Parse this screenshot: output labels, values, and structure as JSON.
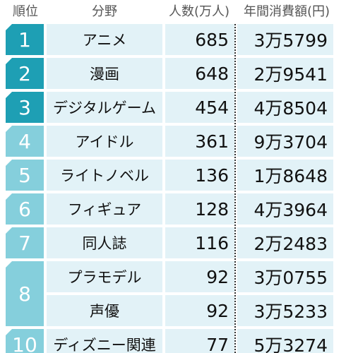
{
  "header": {
    "rank": "順位",
    "field": "分野",
    "count": "人数(万人)",
    "spend": "年間消費額(円)"
  },
  "table": {
    "rows": [
      {
        "rank": 1,
        "field": "アニメ",
        "count": 685,
        "spend": "3万5799"
      },
      {
        "rank": 2,
        "field": "漫画",
        "count": 648,
        "spend": "2万9541"
      },
      {
        "rank": 3,
        "field": "デジタルゲーム",
        "count": 454,
        "spend": "4万8504"
      },
      {
        "rank": 4,
        "field": "アイドル",
        "count": 361,
        "spend": "9万3704"
      },
      {
        "rank": 5,
        "field": "ライトノベル",
        "count": 136,
        "spend": "1万8648"
      },
      {
        "rank": 6,
        "field": "フィギュア",
        "count": 128,
        "spend": "4万3964"
      },
      {
        "rank": 7,
        "field": "同人誌",
        "count": 116,
        "spend": "2万2483"
      },
      {
        "rank": 8,
        "field": "プラモデル",
        "count": 92,
        "spend": "3万0755"
      },
      {
        "field": "声優",
        "count": 92,
        "spend": "3万5233"
      },
      {
        "rank": 10,
        "field": "ディズニー関連",
        "count": 77,
        "spend": "5万3274"
      }
    ]
  }
}
